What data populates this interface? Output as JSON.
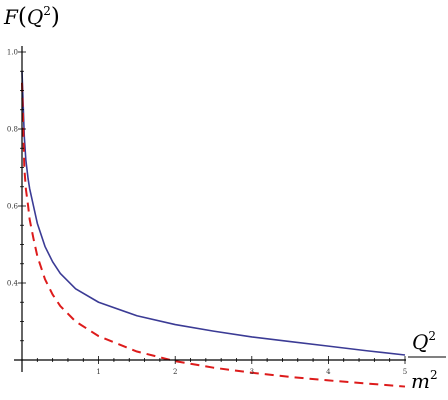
{
  "chart_data": {
    "type": "line",
    "title": "",
    "ylabel": {
      "func": "F",
      "open": "(",
      "base": "Q",
      "exp": "2",
      "close": ")"
    },
    "xlabel": {
      "num_base": "Q",
      "num_exp": "2",
      "den_base": "m",
      "den_exp": "2"
    },
    "xlim": [
      0,
      5
    ],
    "ylim": [
      0.1,
      1.0
    ],
    "x_axis_at_y": 0.2,
    "x_ticks": [
      {
        "value": 1,
        "label": "1"
      },
      {
        "value": 2,
        "label": "2"
      },
      {
        "value": 3,
        "label": "3"
      },
      {
        "value": 4,
        "label": "4"
      },
      {
        "value": 5,
        "label": "5"
      }
    ],
    "y_ticks": [
      {
        "value": 0.4,
        "label": "0.4"
      },
      {
        "value": 0.6,
        "label": "0.6"
      },
      {
        "value": 0.8,
        "label": "0.8"
      },
      {
        "value": 1.0,
        "label": "1.0"
      }
    ],
    "grid": false,
    "legend": "none",
    "series": [
      {
        "style": "solid",
        "color": "#3b3b95",
        "x": [
          0.0,
          0.03,
          0.05,
          0.08,
          0.1,
          0.15,
          0.2,
          0.3,
          0.4,
          0.5,
          0.7,
          1.0,
          1.5,
          2.0,
          2.5,
          3.0,
          3.5,
          4.0,
          4.5,
          5.0
        ],
        "y": [
          0.95,
          0.78,
          0.72,
          0.67,
          0.645,
          0.6,
          0.555,
          0.495,
          0.455,
          0.425,
          0.385,
          0.35,
          0.315,
          0.292,
          0.275,
          0.26,
          0.248,
          0.236,
          0.224,
          0.213
        ]
      },
      {
        "style": "dashed",
        "color": "#dd1b1b",
        "x": [
          0.0,
          0.03,
          0.05,
          0.08,
          0.1,
          0.15,
          0.2,
          0.3,
          0.4,
          0.5,
          0.7,
          1.0,
          1.5,
          2.0,
          2.5,
          3.0,
          3.5,
          4.0,
          4.5,
          5.0
        ],
        "y": [
          0.92,
          0.7,
          0.645,
          0.6,
          0.565,
          0.515,
          0.47,
          0.41,
          0.37,
          0.34,
          0.3,
          0.262,
          0.222,
          0.197,
          0.18,
          0.167,
          0.156,
          0.147,
          0.139,
          0.131
        ]
      }
    ]
  }
}
